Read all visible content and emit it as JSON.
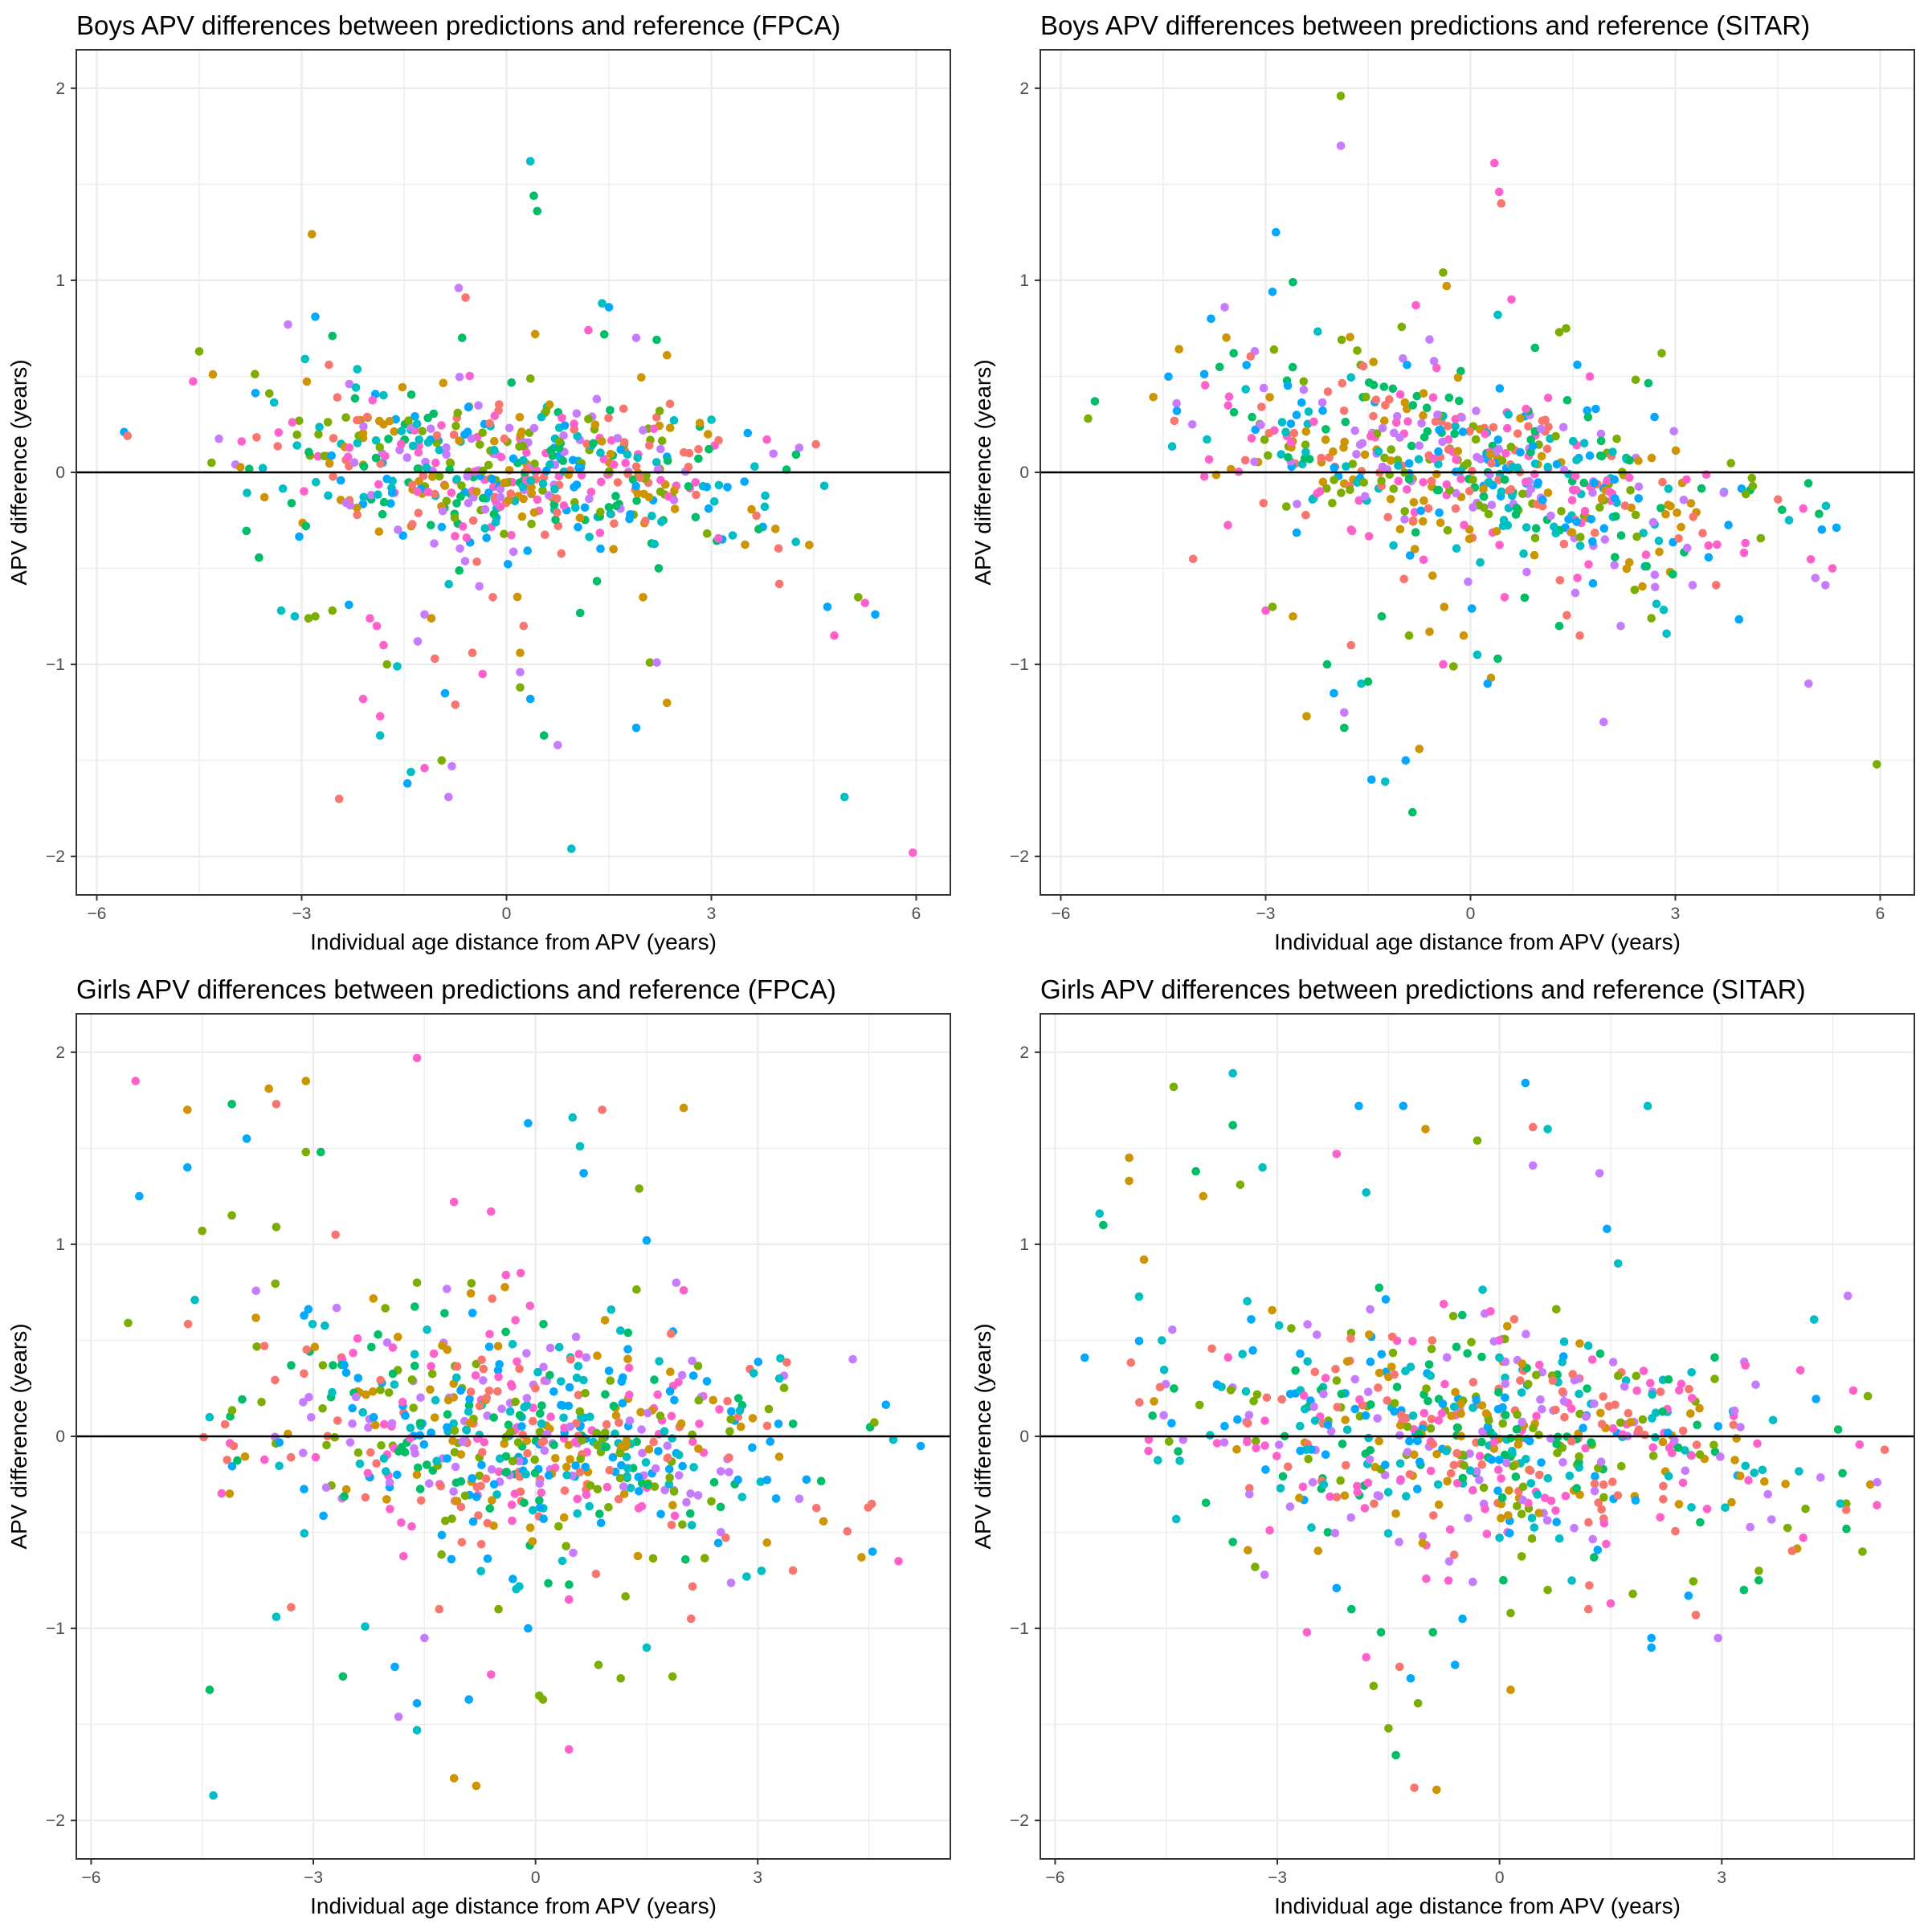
{
  "palette": [
    "#F8766D",
    "#CD9600",
    "#7CAE00",
    "#00BE67",
    "#00BFC4",
    "#00A9FF",
    "#C77CFF",
    "#FF61CC"
  ],
  "chart_data": [
    {
      "type": "scatter",
      "title": "Boys APV differences between predictions and reference (FPCA)",
      "xlabel": "Individual age distance from APV (years)",
      "ylabel": "APV difference (years)",
      "xlim": [
        -6.3,
        6.5
      ],
      "ylim": [
        -2.2,
        2.2
      ],
      "xticks": [
        -6,
        -3,
        0,
        3,
        6
      ],
      "xtick_labels": [
        "−6",
        "−3",
        "0",
        "3",
        "6"
      ],
      "yticks": [
        -2,
        -1,
        0,
        1,
        2
      ],
      "ytick_labels": [
        "−2",
        "−1",
        "0",
        "1",
        "2"
      ],
      "hline": 0,
      "grid": true,
      "legend": "none",
      "random_seed": 11,
      "bulk_n": 560,
      "bulk_x_range": [
        -4.6,
        5.0
      ],
      "bulk_peak_x": 0.0,
      "bulk_y_sd": 0.22,
      "bulk_y_drift": -0.02,
      "x_density_narrowing": 5.2,
      "outliers": [
        [
          -5.6,
          0.21
        ],
        [
          -5.55,
          0.19
        ],
        [
          -4.5,
          0.63
        ],
        [
          -4.3,
          0.51
        ],
        [
          -3.2,
          0.77
        ],
        [
          -2.85,
          1.24
        ],
        [
          -2.95,
          0.59
        ],
        [
          -2.8,
          0.81
        ],
        [
          -2.6,
          0.56
        ],
        [
          -2.55,
          0.71
        ],
        [
          -0.7,
          0.96
        ],
        [
          -0.6,
          0.91
        ],
        [
          -0.65,
          0.7
        ],
        [
          0.35,
          1.62
        ],
        [
          0.4,
          1.44
        ],
        [
          0.45,
          1.36
        ],
        [
          0.42,
          0.72
        ],
        [
          1.4,
          0.88
        ],
        [
          1.5,
          0.86
        ],
        [
          1.2,
          0.74
        ],
        [
          1.9,
          0.7
        ],
        [
          2.2,
          0.69
        ],
        [
          2.35,
          0.61
        ],
        [
          -3.3,
          -0.72
        ],
        [
          -3.1,
          -0.75
        ],
        [
          -2.9,
          -0.76
        ],
        [
          -2.8,
          -0.75
        ],
        [
          -2.55,
          -0.72
        ],
        [
          -2.0,
          -0.76
        ],
        [
          -1.9,
          -0.8
        ],
        [
          -1.8,
          -0.9
        ],
        [
          -1.75,
          -1.0
        ],
        [
          -1.85,
          -1.27
        ],
        [
          -1.85,
          -1.37
        ],
        [
          -2.1,
          -1.18
        ],
        [
          -1.6,
          -1.01
        ],
        [
          -1.4,
          -1.56
        ],
        [
          -1.45,
          -1.62
        ],
        [
          -1.2,
          -1.54
        ],
        [
          -1.3,
          -0.88
        ],
        [
          -1.2,
          -0.74
        ],
        [
          -1.1,
          -0.76
        ],
        [
          -1.05,
          -0.97
        ],
        [
          -0.9,
          -1.15
        ],
        [
          -0.85,
          -1.69
        ],
        [
          -0.95,
          -1.5
        ],
        [
          -0.8,
          -1.53
        ],
        [
          -0.75,
          -1.21
        ],
        [
          -0.5,
          -0.94
        ],
        [
          -0.35,
          -1.05
        ],
        [
          -0.2,
          -0.65
        ],
        [
          0.2,
          -0.94
        ],
        [
          0.2,
          -1.04
        ],
        [
          0.25,
          -0.8
        ],
        [
          0.2,
          -1.12
        ],
        [
          0.35,
          -1.18
        ],
        [
          0.55,
          -1.37
        ],
        [
          0.75,
          -1.42
        ],
        [
          0.95,
          -1.96
        ],
        [
          -2.45,
          -1.7
        ],
        [
          1.9,
          -1.33
        ],
        [
          2.1,
          -0.99
        ],
        [
          2.2,
          -0.99
        ],
        [
          2.35,
          -1.2
        ],
        [
          2.0,
          -0.65
        ],
        [
          4.7,
          -0.7
        ],
        [
          4.8,
          -0.85
        ],
        [
          4.95,
          -1.69
        ],
        [
          5.15,
          -0.65
        ],
        [
          5.25,
          -0.68
        ],
        [
          5.4,
          -0.74
        ],
        [
          5.95,
          -1.98
        ]
      ]
    },
    {
      "type": "scatter",
      "title": "Boys APV differences between predictions and reference (SITAR)",
      "xlabel": "Individual age distance from APV (years)",
      "ylabel": "APV difference (years)",
      "xlim": [
        -6.3,
        6.5
      ],
      "ylim": [
        -2.2,
        2.2
      ],
      "xticks": [
        -6,
        -3,
        0,
        3,
        6
      ],
      "xtick_labels": [
        "−6",
        "−3",
        "0",
        "3",
        "6"
      ],
      "yticks": [
        -2,
        -1,
        0,
        1,
        2
      ],
      "ytick_labels": [
        "−2",
        "−1",
        "0",
        "1",
        "2"
      ],
      "hline": 0,
      "grid": true,
      "legend": "none",
      "random_seed": 23,
      "bulk_n": 600,
      "bulk_x_range": [
        -4.7,
        5.4
      ],
      "bulk_peak_x": 0.0,
      "bulk_y_sd": 0.25,
      "bulk_y_drift": -0.06,
      "x_density_narrowing": 5.0,
      "outliers": [
        [
          -5.6,
          0.28
        ],
        [
          -5.5,
          0.37
        ],
        [
          -4.3,
          0.32
        ],
        [
          -3.8,
          0.8
        ],
        [
          -3.6,
          0.86
        ],
        [
          -2.9,
          0.94
        ],
        [
          -2.85,
          1.25
        ],
        [
          -2.6,
          0.99
        ],
        [
          -1.9,
          1.96
        ],
        [
          -1.9,
          1.7
        ],
        [
          -0.8,
          0.87
        ],
        [
          -0.4,
          1.04
        ],
        [
          -0.35,
          0.97
        ],
        [
          0.35,
          1.61
        ],
        [
          0.42,
          1.46
        ],
        [
          0.45,
          1.4
        ],
        [
          0.6,
          0.9
        ],
        [
          0.4,
          0.82
        ],
        [
          1.3,
          0.73
        ],
        [
          1.4,
          0.75
        ],
        [
          2.8,
          0.62
        ],
        [
          -3.0,
          -0.72
        ],
        [
          -2.9,
          -0.7
        ],
        [
          -2.6,
          -0.75
        ],
        [
          -2.4,
          -1.27
        ],
        [
          -2.1,
          -1.0
        ],
        [
          -2.0,
          -1.15
        ],
        [
          -1.85,
          -1.25
        ],
        [
          -1.85,
          -1.33
        ],
        [
          -1.75,
          -0.9
        ],
        [
          -1.6,
          -1.1
        ],
        [
          -1.45,
          -1.6
        ],
        [
          -1.25,
          -1.61
        ],
        [
          -1.5,
          -1.09
        ],
        [
          -1.3,
          -0.75
        ],
        [
          -0.9,
          -0.85
        ],
        [
          -0.85,
          -1.77
        ],
        [
          -0.95,
          -1.5
        ],
        [
          -0.75,
          -1.44
        ],
        [
          -0.6,
          -0.83
        ],
        [
          -0.4,
          -1.0
        ],
        [
          -0.25,
          -1.01
        ],
        [
          -0.1,
          -0.85
        ],
        [
          0.1,
          -0.95
        ],
        [
          0.3,
          -1.07
        ],
        [
          0.4,
          -0.97
        ],
        [
          0.25,
          -1.1
        ],
        [
          0.5,
          -0.65
        ],
        [
          1.3,
          -0.8
        ],
        [
          1.6,
          -0.85
        ],
        [
          1.95,
          -1.3
        ],
        [
          2.2,
          -0.8
        ],
        [
          4.95,
          -1.1
        ],
        [
          5.95,
          -1.52
        ],
        [
          5.3,
          -0.5
        ],
        [
          5.05,
          -0.55
        ]
      ]
    },
    {
      "type": "scatter",
      "title": "Girls APV differences between predictions and reference (FPCA)",
      "xlabel": "Individual age distance from APV (years)",
      "ylabel": "APV difference (years)",
      "xlim": [
        -6.2,
        5.6
      ],
      "ylim": [
        -2.2,
        2.2
      ],
      "xticks": [
        -6,
        -3,
        0,
        3
      ],
      "xtick_labels": [
        "−6",
        "−3",
        "0",
        "3"
      ],
      "yticks": [
        -2,
        -1,
        0,
        1,
        2
      ],
      "ytick_labels": [
        "−2",
        "−1",
        "0",
        "1",
        "2"
      ],
      "hline": 0,
      "grid": true,
      "legend": "none",
      "random_seed": 37,
      "bulk_n": 650,
      "bulk_x_range": [
        -4.8,
        4.9
      ],
      "bulk_peak_x": -0.2,
      "bulk_y_sd": 0.3,
      "bulk_y_drift": -0.04,
      "x_density_narrowing": 4.8,
      "outliers": [
        [
          -5.5,
          0.59
        ],
        [
          -5.4,
          1.85
        ],
        [
          -5.35,
          1.25
        ],
        [
          -4.7,
          1.7
        ],
        [
          -4.7,
          1.4
        ],
        [
          -4.6,
          0.71
        ],
        [
          -4.5,
          1.07
        ],
        [
          -4.1,
          1.73
        ],
        [
          -4.1,
          1.15
        ],
        [
          -3.9,
          1.55
        ],
        [
          -3.6,
          1.81
        ],
        [
          -3.5,
          1.73
        ],
        [
          -3.5,
          1.09
        ],
        [
          -3.1,
          1.48
        ],
        [
          -3.1,
          1.85
        ],
        [
          -2.9,
          1.48
        ],
        [
          -2.7,
          1.05
        ],
        [
          -1.6,
          1.97
        ],
        [
          -1.6,
          0.8
        ],
        [
          -1.1,
          1.22
        ],
        [
          -0.6,
          1.17
        ],
        [
          -0.1,
          1.63
        ],
        [
          0.5,
          1.66
        ],
        [
          0.6,
          1.51
        ],
        [
          0.65,
          1.37
        ],
        [
          0.9,
          1.7
        ],
        [
          1.4,
          1.29
        ],
        [
          1.5,
          1.02
        ],
        [
          1.9,
          0.8
        ],
        [
          2.0,
          0.76
        ],
        [
          2.0,
          1.71
        ],
        [
          -0.4,
          0.84
        ],
        [
          -0.2,
          0.85
        ],
        [
          -4.4,
          -1.32
        ],
        [
          -4.35,
          -1.87
        ],
        [
          -3.5,
          -0.94
        ],
        [
          -3.3,
          -0.89
        ],
        [
          -2.6,
          -1.25
        ],
        [
          -2.3,
          -0.99
        ],
        [
          -1.9,
          -1.2
        ],
        [
          -1.85,
          -1.46
        ],
        [
          -1.6,
          -1.39
        ],
        [
          -1.6,
          -1.53
        ],
        [
          -1.5,
          -1.05
        ],
        [
          -1.3,
          -0.9
        ],
        [
          -1.1,
          -1.78
        ],
        [
          -0.9,
          -1.37
        ],
        [
          -0.8,
          -1.82
        ],
        [
          -0.6,
          -1.24
        ],
        [
          -0.5,
          -0.9
        ],
        [
          -0.1,
          -1.0
        ],
        [
          0.05,
          -1.35
        ],
        [
          0.1,
          -1.37
        ],
        [
          0.45,
          -1.63
        ],
        [
          0.45,
          -0.85
        ],
        [
          0.85,
          -1.19
        ],
        [
          1.15,
          -1.26
        ],
        [
          1.5,
          -1.1
        ],
        [
          1.85,
          -1.25
        ],
        [
          2.1,
          -0.95
        ],
        [
          2.85,
          -0.73
        ],
        [
          3.05,
          -0.7
        ],
        [
          4.4,
          -0.63
        ],
        [
          4.55,
          -0.6
        ],
        [
          4.9,
          -0.65
        ],
        [
          5.2,
          -0.05
        ]
      ]
    },
    {
      "type": "scatter",
      "title": "Girls APV differences between predictions and reference (SITAR)",
      "xlabel": "Individual age distance from APV (years)",
      "ylabel": "APV difference (years)",
      "xlim": [
        -6.2,
        5.6
      ],
      "ylim": [
        -2.2,
        2.2
      ],
      "xticks": [
        -6,
        -3,
        0,
        3
      ],
      "xtick_labels": [
        "−6",
        "−3",
        "0",
        "3"
      ],
      "yticks": [
        -2,
        -1,
        0,
        1,
        2
      ],
      "ytick_labels": [
        "−2",
        "−1",
        "0",
        "1",
        "2"
      ],
      "hline": 0,
      "grid": true,
      "legend": "none",
      "random_seed": 53,
      "bulk_n": 650,
      "bulk_x_range": [
        -5.0,
        5.3
      ],
      "bulk_peak_x": -0.4,
      "bulk_y_sd": 0.3,
      "bulk_y_drift": -0.02,
      "x_density_narrowing": 4.6,
      "outliers": [
        [
          -5.6,
          0.41
        ],
        [
          -5.4,
          1.16
        ],
        [
          -5.35,
          1.1
        ],
        [
          -5.0,
          1.45
        ],
        [
          -5.0,
          1.33
        ],
        [
          -4.8,
          0.92
        ],
        [
          -4.4,
          1.82
        ],
        [
          -4.1,
          1.38
        ],
        [
          -4.0,
          1.25
        ],
        [
          -3.6,
          1.89
        ],
        [
          -3.6,
          1.62
        ],
        [
          -3.5,
          1.31
        ],
        [
          -3.2,
          1.4
        ],
        [
          -2.2,
          1.47
        ],
        [
          -1.9,
          1.72
        ],
        [
          -1.3,
          1.72
        ],
        [
          -0.3,
          1.54
        ],
        [
          0.35,
          1.84
        ],
        [
          0.45,
          1.61
        ],
        [
          0.65,
          1.6
        ],
        [
          0.45,
          1.41
        ],
        [
          1.35,
          1.37
        ],
        [
          1.45,
          1.08
        ],
        [
          1.6,
          0.9
        ],
        [
          2.0,
          1.72
        ],
        [
          -1.0,
          1.6
        ],
        [
          -1.8,
          1.27
        ],
        [
          -3.6,
          -0.55
        ],
        [
          -3.3,
          -0.68
        ],
        [
          -2.6,
          -1.02
        ],
        [
          -2.2,
          -0.79
        ],
        [
          -2.0,
          -0.9
        ],
        [
          -1.8,
          -1.15
        ],
        [
          -1.7,
          -1.3
        ],
        [
          -1.6,
          -1.02
        ],
        [
          -1.5,
          -1.52
        ],
        [
          -1.4,
          -1.66
        ],
        [
          -1.35,
          -1.2
        ],
        [
          -1.2,
          -1.26
        ],
        [
          -1.1,
          -1.39
        ],
        [
          -1.15,
          -1.83
        ],
        [
          -0.85,
          -1.84
        ],
        [
          -0.9,
          -1.02
        ],
        [
          -0.6,
          -1.19
        ],
        [
          -0.5,
          -0.95
        ],
        [
          0.15,
          -1.32
        ],
        [
          0.15,
          -0.92
        ],
        [
          0.65,
          -0.8
        ],
        [
          1.2,
          -0.9
        ],
        [
          1.5,
          -0.87
        ],
        [
          1.8,
          -0.82
        ],
        [
          2.05,
          -1.05
        ],
        [
          2.05,
          -1.1
        ],
        [
          2.55,
          -0.83
        ],
        [
          2.65,
          -0.93
        ],
        [
          2.95,
          -1.05
        ],
        [
          3.3,
          -0.8
        ],
        [
          3.5,
          -0.75
        ],
        [
          3.5,
          -0.7
        ],
        [
          4.6,
          -0.35
        ],
        [
          4.9,
          -0.6
        ],
        [
          5.2,
          -0.07
        ]
      ]
    }
  ]
}
